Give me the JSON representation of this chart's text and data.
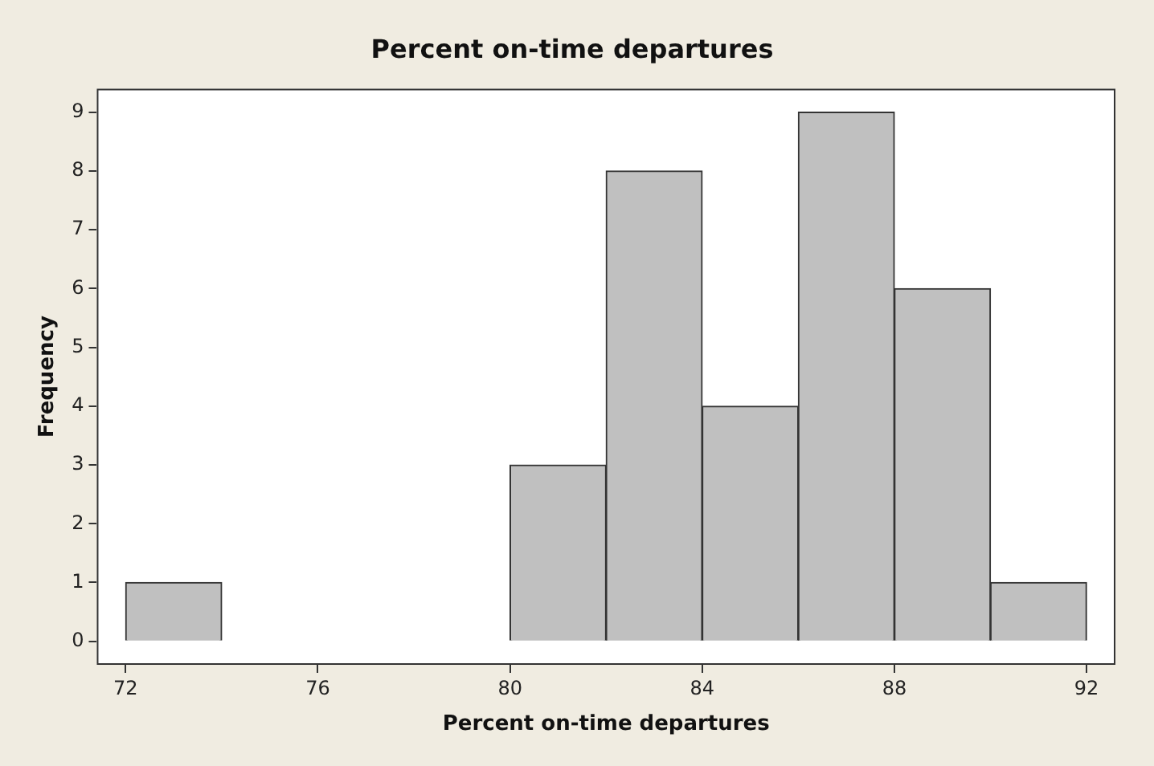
{
  "chart_data": {
    "type": "histogram",
    "title": "Percent on-time departures",
    "xlabel": "Percent on-time departures",
    "ylabel": "Frequency",
    "bins": [
      72,
      74,
      76,
      78,
      80,
      82,
      84,
      86,
      88,
      90,
      92
    ],
    "values": [
      1,
      0,
      0,
      0,
      3,
      8,
      4,
      9,
      6,
      1
    ],
    "color": "#c0c0c0",
    "xlim": [
      71.4,
      92.6
    ],
    "xticks": [
      72,
      76,
      80,
      84,
      88,
      92
    ],
    "ylim": [
      -0.4,
      9.4
    ],
    "yticks": [
      0,
      1,
      2,
      3,
      4,
      5,
      6,
      7,
      8,
      9
    ],
    "grid": false,
    "legend": false
  }
}
